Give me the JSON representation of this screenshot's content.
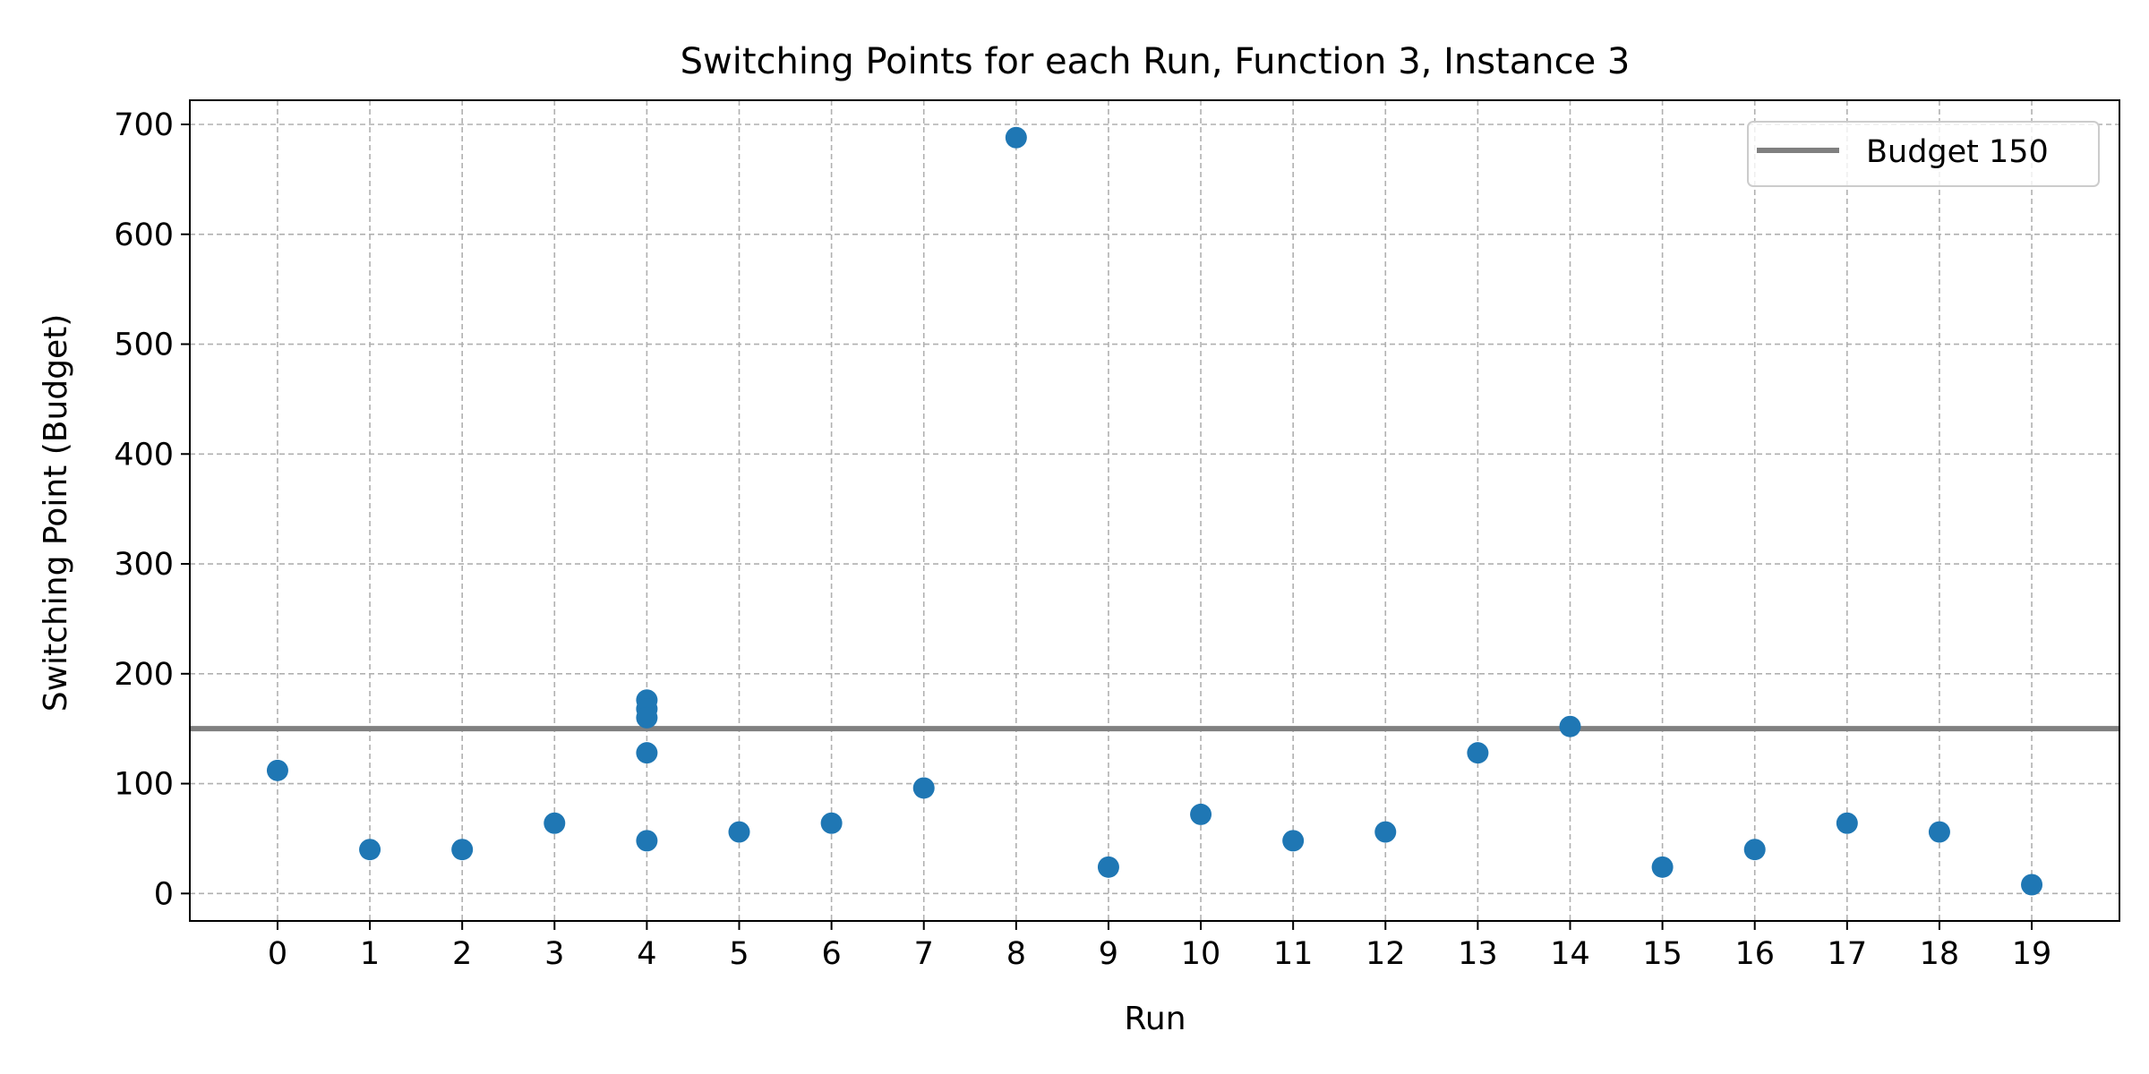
{
  "chart_data": {
    "type": "scatter",
    "title": "Switching Points for each Run, Function 3, Instance 3",
    "xlabel": "Run",
    "ylabel": "Switching Point (Budget)",
    "x_ticks": [
      "0",
      "1",
      "2",
      "3",
      "4",
      "5",
      "6",
      "7",
      "8",
      "9",
      "10",
      "11",
      "12",
      "13",
      "14",
      "15",
      "16",
      "17",
      "18",
      "19"
    ],
    "y_ticks": [
      "0",
      "100",
      "200",
      "300",
      "400",
      "500",
      "600",
      "700"
    ],
    "xlim": [
      -0.95,
      19.95
    ],
    "ylim": [
      -25,
      722
    ],
    "grid": true,
    "legend_position": "top-right",
    "points": [
      {
        "x": 0,
        "y": 112
      },
      {
        "x": 1,
        "y": 40
      },
      {
        "x": 2,
        "y": 40
      },
      {
        "x": 3,
        "y": 64
      },
      {
        "x": 4,
        "y": 176
      },
      {
        "x": 4,
        "y": 168
      },
      {
        "x": 4,
        "y": 160
      },
      {
        "x": 4,
        "y": 128
      },
      {
        "x": 4,
        "y": 48
      },
      {
        "x": 5,
        "y": 56
      },
      {
        "x": 6,
        "y": 64
      },
      {
        "x": 7,
        "y": 96
      },
      {
        "x": 8,
        "y": 688
      },
      {
        "x": 9,
        "y": 24
      },
      {
        "x": 10,
        "y": 72
      },
      {
        "x": 11,
        "y": 48
      },
      {
        "x": 12,
        "y": 56
      },
      {
        "x": 13,
        "y": 128
      },
      {
        "x": 14,
        "y": 152
      },
      {
        "x": 15,
        "y": 24
      },
      {
        "x": 16,
        "y": 40
      },
      {
        "x": 17,
        "y": 64
      },
      {
        "x": 18,
        "y": 56
      },
      {
        "x": 19,
        "y": 8
      }
    ],
    "reference_line": {
      "name": "Budget 150",
      "y": 150
    },
    "colors": {
      "points": "#1f77b4",
      "reference_line": "#808080",
      "grid": "#b0b0b0",
      "axes": "#000000"
    }
  }
}
